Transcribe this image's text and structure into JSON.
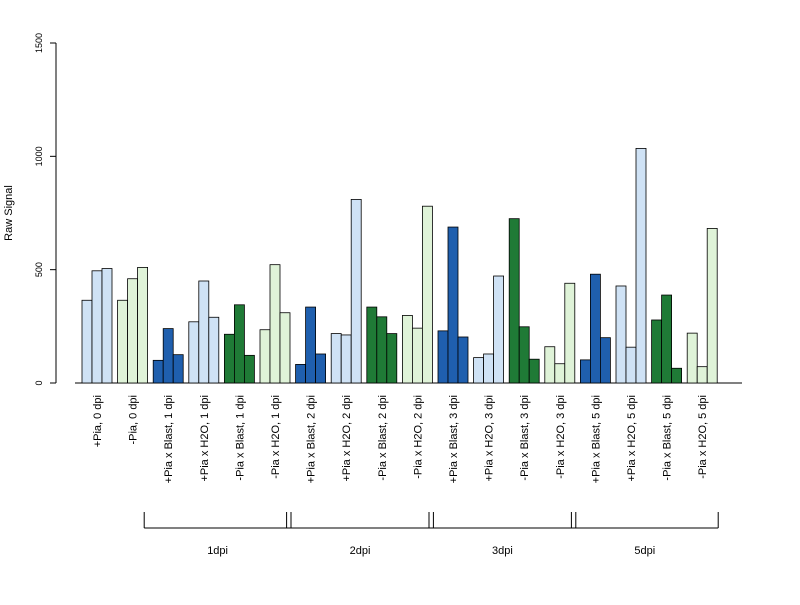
{
  "chart_data": {
    "type": "bar",
    "title": "",
    "xlabel": "",
    "ylabel": "Raw Signal",
    "ylim": [
      0,
      1500
    ],
    "yticks": [
      0,
      500,
      1000,
      1500
    ],
    "grid": false,
    "legend": "none",
    "bars_per_group": 3,
    "categories": [
      "+Pia, 0 dpi",
      "-Pia, 0 dpi",
      "+Pia x Blast, 1 dpi",
      "+Pia x H2O, 1 dpi",
      "-Pia x Blast, 1 dpi",
      "-Pia x H2O, 1 dpi",
      "+Pia x Blast, 2 dpi",
      "+Pia x H2O, 2 dpi",
      "-Pia x Blast, 2 dpi",
      "-Pia x H2O, 2 dpi",
      "+Pia x Blast, 3 dpi",
      "+Pia x H2O, 3 dpi",
      "-Pia x Blast, 3 dpi",
      "-Pia x H2O, 3 dpi",
      "+Pia x Blast, 5 dpi",
      "+Pia x H2O, 5 dpi",
      "-Pia x Blast, 5 dpi",
      "-Pia x H2O, 5 dpi"
    ],
    "colors": [
      "#cfe2f5",
      "#dff3d8",
      "#1f5fae",
      "#cfe2f5",
      "#1f7a36",
      "#dff3d8",
      "#1f5fae",
      "#cfe2f5",
      "#1f7a36",
      "#dff3d8",
      "#1f5fae",
      "#cfe2f5",
      "#1f7a36",
      "#dff3d8",
      "#1f5fae",
      "#cfe2f5",
      "#1f7a36",
      "#dff3d8"
    ],
    "values": [
      [
        365,
        495,
        505
      ],
      [
        365,
        460,
        510
      ],
      [
        100,
        240,
        125
      ],
      [
        270,
        450,
        290
      ],
      [
        215,
        345,
        122
      ],
      [
        235,
        522,
        310
      ],
      [
        82,
        335,
        128
      ],
      [
        218,
        212,
        810
      ],
      [
        335,
        292,
        218
      ],
      [
        298,
        242,
        780
      ],
      [
        230,
        688,
        203
      ],
      [
        112,
        128,
        472
      ],
      [
        725,
        248,
        105
      ],
      [
        160,
        85,
        440
      ],
      [
        102,
        480,
        200
      ],
      [
        428,
        158,
        1035
      ],
      [
        278,
        388,
        65
      ],
      [
        220,
        72,
        682
      ]
    ],
    "group_labels": [
      {
        "label": "1dpi",
        "from": 2,
        "to": 5
      },
      {
        "label": "2dpi",
        "from": 6,
        "to": 9
      },
      {
        "label": "3dpi",
        "from": 10,
        "to": 13
      },
      {
        "label": "5dpi",
        "from": 14,
        "to": 17
      }
    ]
  }
}
